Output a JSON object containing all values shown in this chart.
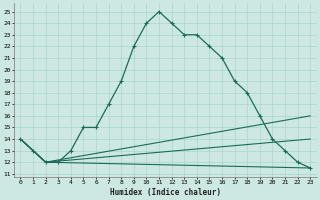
{
  "xlabel": "Humidex (Indice chaleur)",
  "bg_color": "#cde8e2",
  "grid_color": "#b0d8d0",
  "line_color": "#1a6b5a",
  "xlim": [
    -0.5,
    23.5
  ],
  "ylim": [
    11,
    25.5
  ],
  "yticks": [
    11,
    12,
    13,
    14,
    15,
    16,
    17,
    18,
    19,
    20,
    21,
    22,
    23,
    24,
    25
  ],
  "xticks": [
    0,
    1,
    2,
    3,
    4,
    5,
    6,
    7,
    8,
    9,
    10,
    11,
    12,
    13,
    14,
    15,
    16,
    17,
    18,
    19,
    20,
    21,
    22,
    23
  ],
  "main_line": {
    "x": [
      0,
      1,
      2,
      3,
      4,
      5,
      6,
      7,
      8,
      9,
      10,
      11,
      12,
      13,
      14,
      15,
      16,
      17,
      18,
      19,
      20,
      21,
      22,
      23
    ],
    "y": [
      14,
      13,
      12,
      12,
      13,
      15,
      15,
      17,
      19,
      22,
      24,
      25,
      24,
      23,
      23,
      22,
      21,
      19,
      18,
      16,
      14,
      13,
      12,
      11.5
    ]
  },
  "flat_lines": [
    {
      "x": [
        0,
        2,
        23
      ],
      "y": [
        14,
        12,
        16
      ]
    },
    {
      "x": [
        0,
        2,
        23
      ],
      "y": [
        14,
        12,
        14
      ]
    },
    {
      "x": [
        0,
        2,
        23
      ],
      "y": [
        14,
        12,
        11.5
      ]
    }
  ]
}
